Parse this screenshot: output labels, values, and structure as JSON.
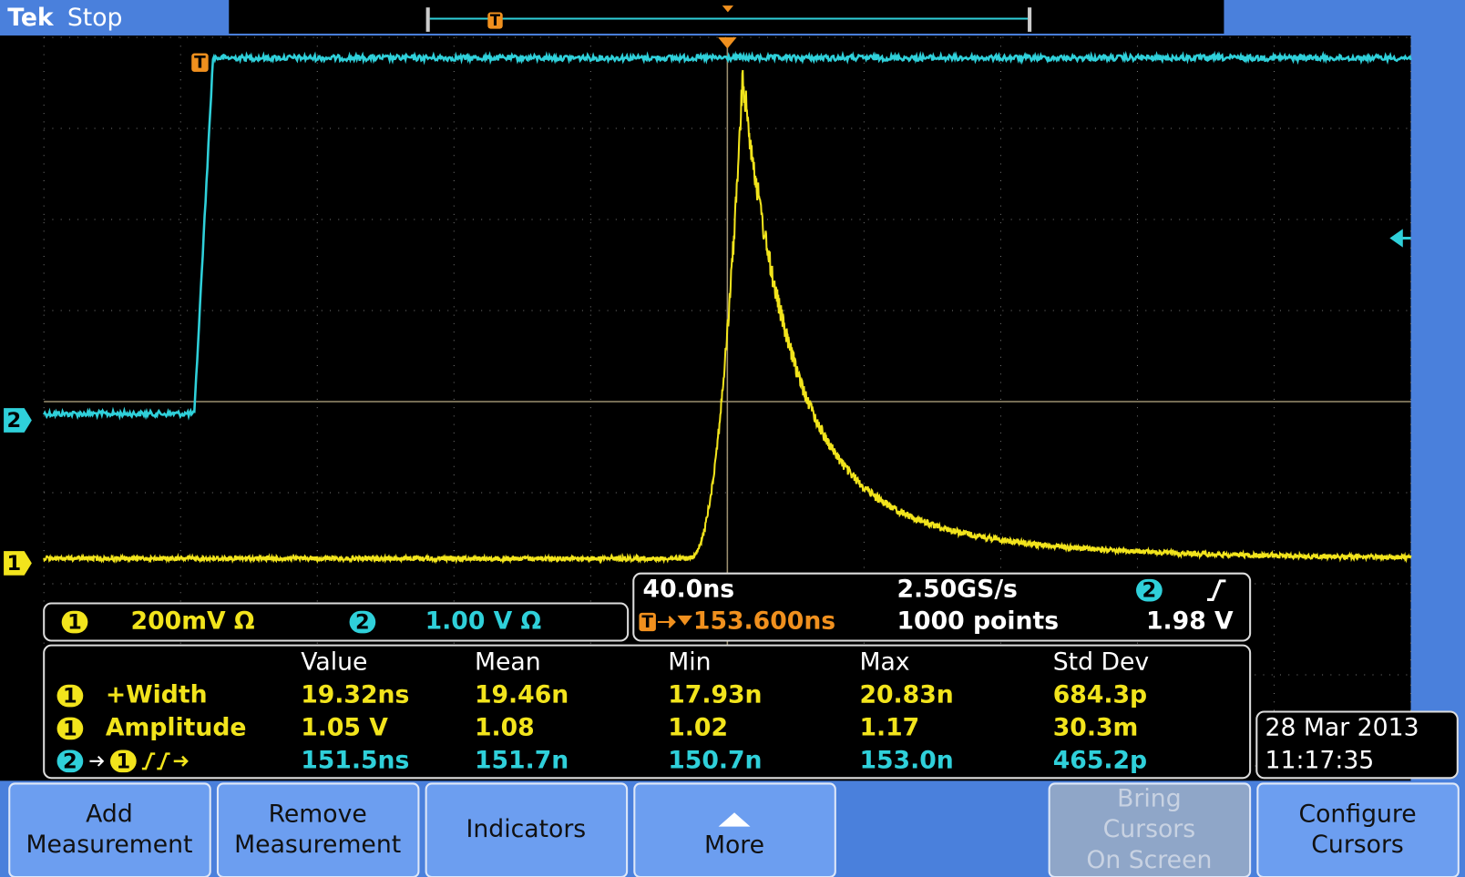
{
  "header": {
    "brand": "Tek",
    "status": "Stop"
  },
  "trigger_label": "T",
  "channels": [
    {
      "id": "1",
      "color": "#f2e41c"
    },
    {
      "id": "2",
      "color": "#2fd0da"
    }
  ],
  "vertical": {
    "ch1_scale": "200mV Ω",
    "ch2_scale": "1.00 V Ω"
  },
  "horizontal": {
    "time_per_div": "40.0ns",
    "trigger_position": "153.600ns",
    "sample_rate": "2.50GS/s",
    "record_length": "1000 points",
    "trigger_source": "2",
    "trigger_level": "1.98 V"
  },
  "measurements": {
    "headers": [
      "Value",
      "Mean",
      "Min",
      "Max",
      "Std Dev"
    ],
    "rows": [
      {
        "source": "1",
        "name": "+Width",
        "values": [
          "19.32ns",
          "19.46n",
          "17.93n",
          "20.83n",
          "684.3p"
        ]
      },
      {
        "source": "1",
        "name": "Amplitude",
        "values": [
          "1.05 V",
          "1.08",
          "1.02",
          "1.17",
          "30.3m"
        ]
      },
      {
        "source": "2",
        "target": "1",
        "values": [
          "151.5ns",
          "151.7n",
          "150.7n",
          "153.0n",
          "465.2p"
        ]
      }
    ]
  },
  "datetime": {
    "date": "28 Mar  2013",
    "time": "11:17:35"
  },
  "buttons": [
    {
      "lines": [
        "Add",
        "Measurement"
      ],
      "enabled": true
    },
    {
      "lines": [
        "Remove",
        "Measurement"
      ],
      "enabled": true
    },
    {
      "lines": [
        "Indicators"
      ],
      "enabled": true
    },
    {
      "lines": [
        "More"
      ],
      "enabled": true
    },
    {
      "lines": [
        "Bring",
        "Cursors",
        "On Screen"
      ],
      "enabled": false
    },
    {
      "lines": [
        "Configure",
        "Cursors"
      ],
      "enabled": true
    }
  ]
}
